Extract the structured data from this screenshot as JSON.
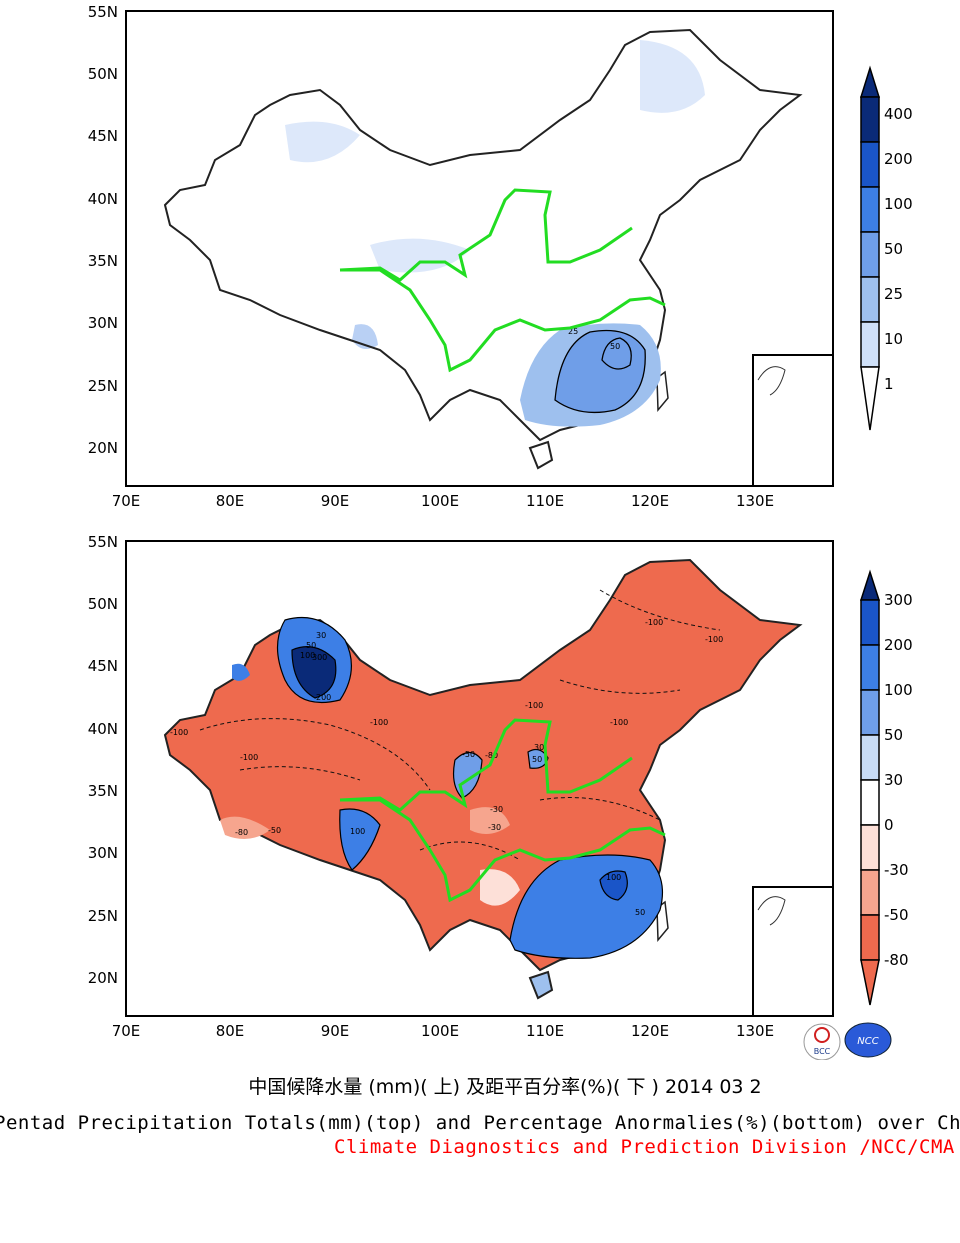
{
  "top_panel": {
    "y_ticks": [
      "55N",
      "50N",
      "45N",
      "40N",
      "35N",
      "30N",
      "25N",
      "20N"
    ],
    "x_ticks": [
      "70E",
      "80E",
      "90E",
      "100E",
      "110E",
      "120E",
      "130E"
    ],
    "colorbar": {
      "labels": [
        "400",
        "200",
        "100",
        "50",
        "25",
        "10",
        "1"
      ],
      "colors": [
        "#0a2a78",
        "#1a55c8",
        "#3d7fe6",
        "#6f9ee8",
        "#9ec0ee",
        "#cfe0f8",
        "#ffffff"
      ]
    },
    "contour_labels": [
      "25",
      "50"
    ]
  },
  "bottom_panel": {
    "y_ticks": [
      "55N",
      "50N",
      "45N",
      "40N",
      "35N",
      "30N",
      "25N",
      "20N"
    ],
    "x_ticks": [
      "70E",
      "80E",
      "90E",
      "100E",
      "110E",
      "120E",
      "130E"
    ],
    "colorbar": {
      "labels": [
        "300",
        "200",
        "100",
        "50",
        "30",
        "0",
        "-30",
        "-50",
        "-80"
      ],
      "colors": [
        "#0a2a78",
        "#1a55c8",
        "#3d7fe6",
        "#6f9ee8",
        "#c8dcf6",
        "#ffffff",
        "#fde0d8",
        "#f6a58e",
        "#ee6a4e"
      ]
    },
    "contour_labels": [
      "-100",
      "-100",
      "-100",
      "-100",
      "-100",
      "-80",
      "-50",
      "-30",
      "30",
      "50",
      "100",
      "200",
      "300",
      "100",
      "50",
      "30",
      "-100",
      "-80",
      "-50",
      "-30",
      "50",
      "100",
      "-100"
    ]
  },
  "logos": [
    "BCC",
    "NCC"
  ],
  "captions": {
    "chinese": "中国候降水量 (mm)( 上) 及距平百分率(%)( 下 ) 2014 03 2",
    "english": "Pentad Precipitation Totals(mm)(top) and Percentage Anormalies(%)(bottom) over China",
    "division": "Climate Diagnostics and Prediction Division /NCC/CMA"
  },
  "colors": {
    "river": "#22dd22",
    "border": "#222222",
    "deficit": "#ee6a4e",
    "surplus": "#3d7fe6"
  }
}
